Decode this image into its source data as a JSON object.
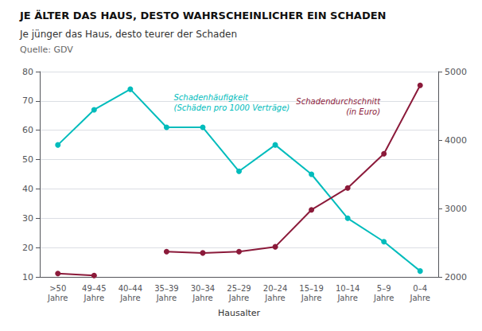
{
  "chart_data": {
    "type": "line",
    "title": "JE ÄLTER DAS HAUS, DESTO WAHRSCHEINLICHER EIN SCHADEN",
    "subtitle": "Je jünger das Haus, desto teurer der Schaden",
    "source": "Quelle: GDV",
    "xlabel": "Hausalter",
    "categories": [
      ">50\nJahre",
      "49–45\nJahre",
      "40–44\nJahre",
      "35–39\nJahre",
      "30–34\nJahre",
      "25–29\nJahre",
      "20–24\nJahre",
      "15–19\nJahre",
      "10–14\nJahre",
      "5–9\nJahre",
      "0–4\nJahre"
    ],
    "series": [
      {
        "color": "#00BCBC",
        "values": [
          55,
          67,
          74,
          61,
          61,
          46,
          55,
          45,
          30,
          22,
          12
        ],
        "annotation": "Schadenhäufigkeit\n(Schäden pro 1000 Verträge)"
      },
      {
        "color": "#8B1A3A",
        "axis": "y2",
        "values": [
          2050,
          2020,
          null,
          2370,
          2350,
          2370,
          2440,
          2980,
          3300,
          3800,
          4800
        ],
        "annotation": "Schadendurchschnitt\n(in Euro)"
      }
    ],
    "ylim": [
      10,
      80
    ],
    "yticks": [
      10,
      20,
      30,
      40,
      50,
      60,
      70,
      80
    ],
    "y2lim": [
      2000,
      5000
    ],
    "y2ticks": [
      2000,
      3000,
      4000,
      5000
    ],
    "grid": true,
    "marker": "circle"
  }
}
